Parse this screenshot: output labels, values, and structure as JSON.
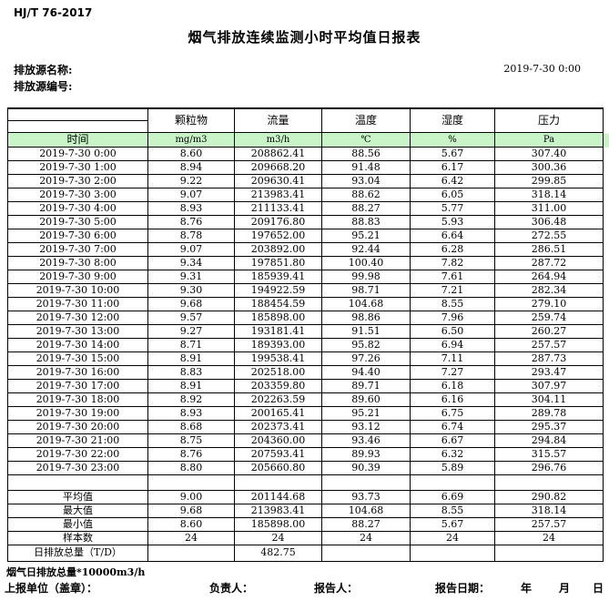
{
  "header": {
    "standard_code": "HJ/T  76-2017",
    "title": "烟气排放连续监测小时平均值日报表",
    "source_name_label": "排放源名称:",
    "source_code_label": "排放源编号:",
    "datetime": "2019-7-30 0:00"
  },
  "table": {
    "time_header": "时间",
    "columns": [
      {
        "name": "颗粒物",
        "unit": "mg/m3"
      },
      {
        "name": "流量",
        "unit": "m3/h"
      },
      {
        "name": "温度",
        "unit": "℃"
      },
      {
        "name": "湿度",
        "unit": "%"
      },
      {
        "name": "压力",
        "unit": "Pa"
      }
    ],
    "rows": [
      {
        "time": "2019-7-30 0:00",
        "values": [
          "8.60",
          "208862.41",
          "88.56",
          "5.67",
          "307.40"
        ]
      },
      {
        "time": "2019-7-30 1:00",
        "values": [
          "8.94",
          "209668.20",
          "91.48",
          "6.17",
          "300.36"
        ]
      },
      {
        "time": "2019-7-30 2:00",
        "values": [
          "9.22",
          "209630.41",
          "93.04",
          "6.42",
          "299.85"
        ]
      },
      {
        "time": "2019-7-30 3:00",
        "values": [
          "9.07",
          "213983.41",
          "88.62",
          "6.05",
          "318.14"
        ]
      },
      {
        "time": "2019-7-30 4:00",
        "values": [
          "8.93",
          "211133.41",
          "88.27",
          "5.77",
          "311.00"
        ]
      },
      {
        "time": "2019-7-30 5:00",
        "values": [
          "8.76",
          "209176.80",
          "88.83",
          "5.93",
          "306.48"
        ]
      },
      {
        "time": "2019-7-30 6:00",
        "values": [
          "8.78",
          "197652.00",
          "95.21",
          "6.64",
          "272.55"
        ]
      },
      {
        "time": "2019-7-30 7:00",
        "values": [
          "9.07",
          "203892.00",
          "92.44",
          "6.28",
          "286.51"
        ]
      },
      {
        "time": "2019-7-30 8:00",
        "values": [
          "9.34",
          "197851.80",
          "100.40",
          "7.82",
          "287.72"
        ]
      },
      {
        "time": "2019-7-30 9:00",
        "values": [
          "9.31",
          "185939.41",
          "99.98",
          "7.61",
          "264.94"
        ]
      },
      {
        "time": "2019-7-30 10:00",
        "values": [
          "9.30",
          "194922.59",
          "98.71",
          "7.21",
          "282.34"
        ]
      },
      {
        "time": "2019-7-30 11:00",
        "values": [
          "9.68",
          "188454.59",
          "104.68",
          "8.55",
          "279.10"
        ]
      },
      {
        "time": "2019-7-30 12:00",
        "values": [
          "9.57",
          "185898.00",
          "98.86",
          "7.96",
          "259.74"
        ]
      },
      {
        "time": "2019-7-30 13:00",
        "values": [
          "9.27",
          "193181.41",
          "91.51",
          "6.50",
          "260.27"
        ]
      },
      {
        "time": "2019-7-30 14:00",
        "values": [
          "8.71",
          "189393.00",
          "95.82",
          "6.94",
          "257.57"
        ]
      },
      {
        "time": "2019-7-30 15:00",
        "values": [
          "8.91",
          "199538.41",
          "97.26",
          "7.11",
          "287.73"
        ]
      },
      {
        "time": "2019-7-30 16:00",
        "values": [
          "8.83",
          "202518.00",
          "94.40",
          "7.27",
          "293.47"
        ]
      },
      {
        "time": "2019-7-30 17:00",
        "values": [
          "8.91",
          "203359.80",
          "89.71",
          "6.18",
          "307.97"
        ]
      },
      {
        "time": "2019-7-30 18:00",
        "values": [
          "8.92",
          "202263.59",
          "89.60",
          "6.16",
          "304.11"
        ]
      },
      {
        "time": "2019-7-30 19:00",
        "values": [
          "8.93",
          "200165.41",
          "95.21",
          "6.75",
          "289.78"
        ]
      },
      {
        "time": "2019-7-30 20:00",
        "values": [
          "8.68",
          "202373.41",
          "93.12",
          "6.74",
          "295.37"
        ]
      },
      {
        "time": "2019-7-30 21:00",
        "values": [
          "8.75",
          "204360.00",
          "93.46",
          "6.67",
          "294.84"
        ]
      },
      {
        "time": "2019-7-30 22:00",
        "values": [
          "8.76",
          "207593.41",
          "89.93",
          "6.32",
          "315.57"
        ]
      },
      {
        "time": "2019-7-30 23:00",
        "values": [
          "8.80",
          "205660.80",
          "90.39",
          "5.89",
          "296.76"
        ]
      }
    ],
    "summary": [
      {
        "label": "平均值",
        "values": [
          "9.00",
          "201144.68",
          "93.73",
          "6.69",
          "290.82"
        ],
        "type": "summary"
      },
      {
        "label": "最大值",
        "values": [
          "9.68",
          "213983.41",
          "104.68",
          "8.55",
          "318.14"
        ],
        "type": "summary"
      },
      {
        "label": "最小值",
        "values": [
          "8.60",
          "185898.00",
          "88.27",
          "5.67",
          "257.57"
        ],
        "type": "summary"
      },
      {
        "label": "样本数",
        "values": [
          "24",
          "24",
          "24",
          "24",
          "24"
        ],
        "type": "summary"
      },
      {
        "label": "日排放总量（T/D）",
        "values": [
          "",
          "482.75",
          "",
          "",
          ""
        ],
        "type": "total"
      }
    ]
  },
  "footer": {
    "note": "烟气日排放总量*10000m3/h",
    "report_unit_label": "上报单位（盖章）：",
    "responsible_label": "负责人：",
    "reporter_label": "报告人：",
    "report_date_label": "报告日期：",
    "year_label": "年",
    "month_label": "月",
    "day_label": "日"
  },
  "colors": {
    "unit_row_bg": "#c8f4c8",
    "border": "#000000"
  }
}
